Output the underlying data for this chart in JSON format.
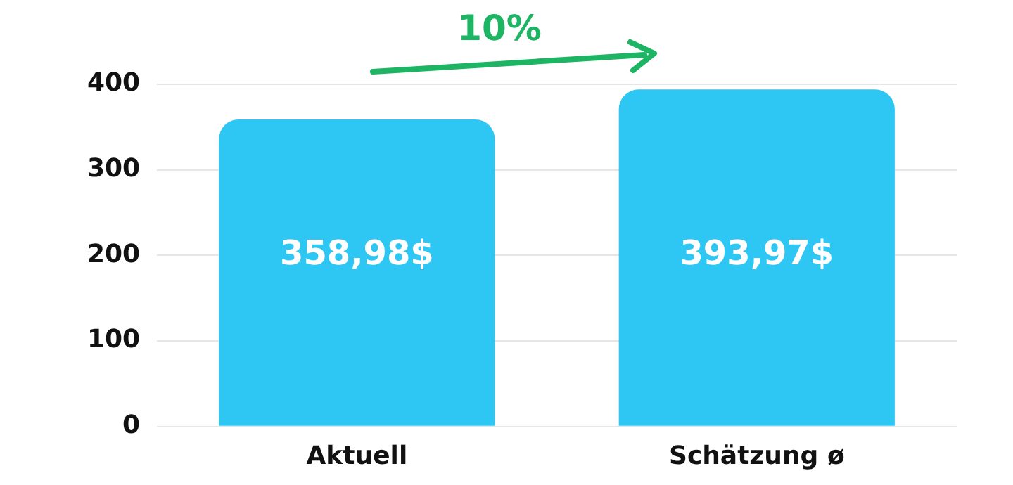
{
  "chart_data": {
    "type": "bar",
    "categories": [
      "Aktuell",
      "Schätzung ø"
    ],
    "values": [
      358.98,
      393.97
    ],
    "value_labels": [
      "358,98$",
      "393,97$"
    ],
    "color": "#2ec7f4",
    "ylim": [
      0,
      400
    ],
    "yticks": [
      0,
      100,
      200,
      300,
      400
    ],
    "grid": "y",
    "legend": false,
    "annotations": [
      "10%"
    ]
  }
}
